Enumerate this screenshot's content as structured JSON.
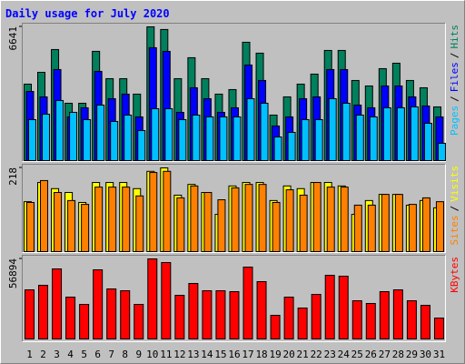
{
  "chart_data": [
    {
      "type": "bar",
      "title": "Daily usage for July 2020",
      "ylim": [
        0,
        6641
      ],
      "yticks": [
        6641
      ],
      "legend_separator": "/",
      "series": [
        {
          "name": "Hits",
          "color": "#00805c",
          "values": [
            3797,
            4384,
            5514,
            2848,
            2848,
            5424,
            4068,
            4068,
            3300,
            6641,
            6509,
            4068,
            5108,
            4068,
            3300,
            3526,
            5876,
            5334,
            2260,
            3164,
            3797,
            4294,
            5469,
            5469,
            3978,
            3706,
            4565,
            4836,
            3978,
            3616,
            2667
          ]
        },
        {
          "name": "Files",
          "color": "#0000ff",
          "values": [
            3435,
            3164,
            4520,
            2170,
            2622,
            4430,
            3074,
            3300,
            2170,
            5605,
            5424,
            2396,
            3616,
            3074,
            2396,
            2622,
            4746,
            3978,
            1718,
            2170,
            3074,
            3164,
            4520,
            4520,
            2757,
            2622,
            3706,
            3706,
            3164,
            2712,
            2170
          ]
        },
        {
          "name": "Pages",
          "color": "#00c0ff",
          "values": [
            2034,
            2305,
            2983,
            2396,
            2034,
            2757,
            1944,
            2260,
            1492,
            2576,
            2576,
            2034,
            2260,
            2170,
            2170,
            2170,
            3074,
            2848,
            1175,
            1401,
            2034,
            2034,
            3074,
            2848,
            2260,
            2170,
            2622,
            2622,
            2667,
            1853,
            859
          ]
        }
      ]
    },
    {
      "type": "bar",
      "ylim": [
        0,
        218
      ],
      "yticks": [
        218
      ],
      "legend_separator": "/",
      "series": [
        {
          "name": "Visits",
          "color": "#ffff00",
          "values": [
            130,
            180,
            164,
            154,
            128,
            180,
            180,
            180,
            164,
            209,
            218,
            147,
            175,
            154,
            97,
            171,
            180,
            180,
            133,
            171,
            164,
            180,
            180,
            171,
            97,
            133,
            149,
            149,
            121,
            133,
            114
          ]
        },
        {
          "name": "Sites",
          "color": "#ff8000",
          "values": [
            128,
            185,
            154,
            133,
            123,
            168,
            168,
            168,
            145,
            206,
            209,
            140,
            171,
            154,
            135,
            166,
            175,
            175,
            128,
            161,
            147,
            180,
            168,
            168,
            121,
            121,
            149,
            149,
            123,
            140,
            130
          ]
        }
      ]
    },
    {
      "type": "bar",
      "ylim": [
        0,
        56894
      ],
      "yticks": [
        56894
      ],
      "categories": [
        "1",
        "2",
        "3",
        "4",
        "5",
        "6",
        "7",
        "8",
        "9",
        "10",
        "11",
        "12",
        "13",
        "14",
        "15",
        "16",
        "17",
        "18",
        "19",
        "20",
        "21",
        "22",
        "23",
        "24",
        "25",
        "26",
        "27",
        "28",
        "29",
        "30",
        "31"
      ],
      "category_colors": [
        "#000000",
        "#000000",
        "#000000",
        "#00805c",
        "#00805c",
        "#000000",
        "#000000",
        "#000000",
        "#000000",
        "#000000",
        "#00805c",
        "#00805c",
        "#000000",
        "#000000",
        "#000000",
        "#000000",
        "#000000",
        "#00805c",
        "#00805c",
        "#000000",
        "#000000",
        "#000000",
        "#000000",
        "#000000",
        "#00805c",
        "#00805c",
        "#000000",
        "#000000",
        "#000000",
        "#000000",
        "#000000"
      ],
      "series": [
        {
          "name": "KBytes",
          "color": "#ff0000",
          "values": [
            34911,
            38144,
            49781,
            29739,
            24567,
            49134,
            35558,
            34265,
            24567,
            56894,
            54306,
            31032,
            39437,
            34265,
            34265,
            33618,
            51074,
            40730,
            16809,
            29739,
            21981,
            31679,
            45255,
            44609,
            27153,
            25214,
            33618,
            34911,
            27153,
            23921,
            14870
          ]
        }
      ]
    }
  ]
}
